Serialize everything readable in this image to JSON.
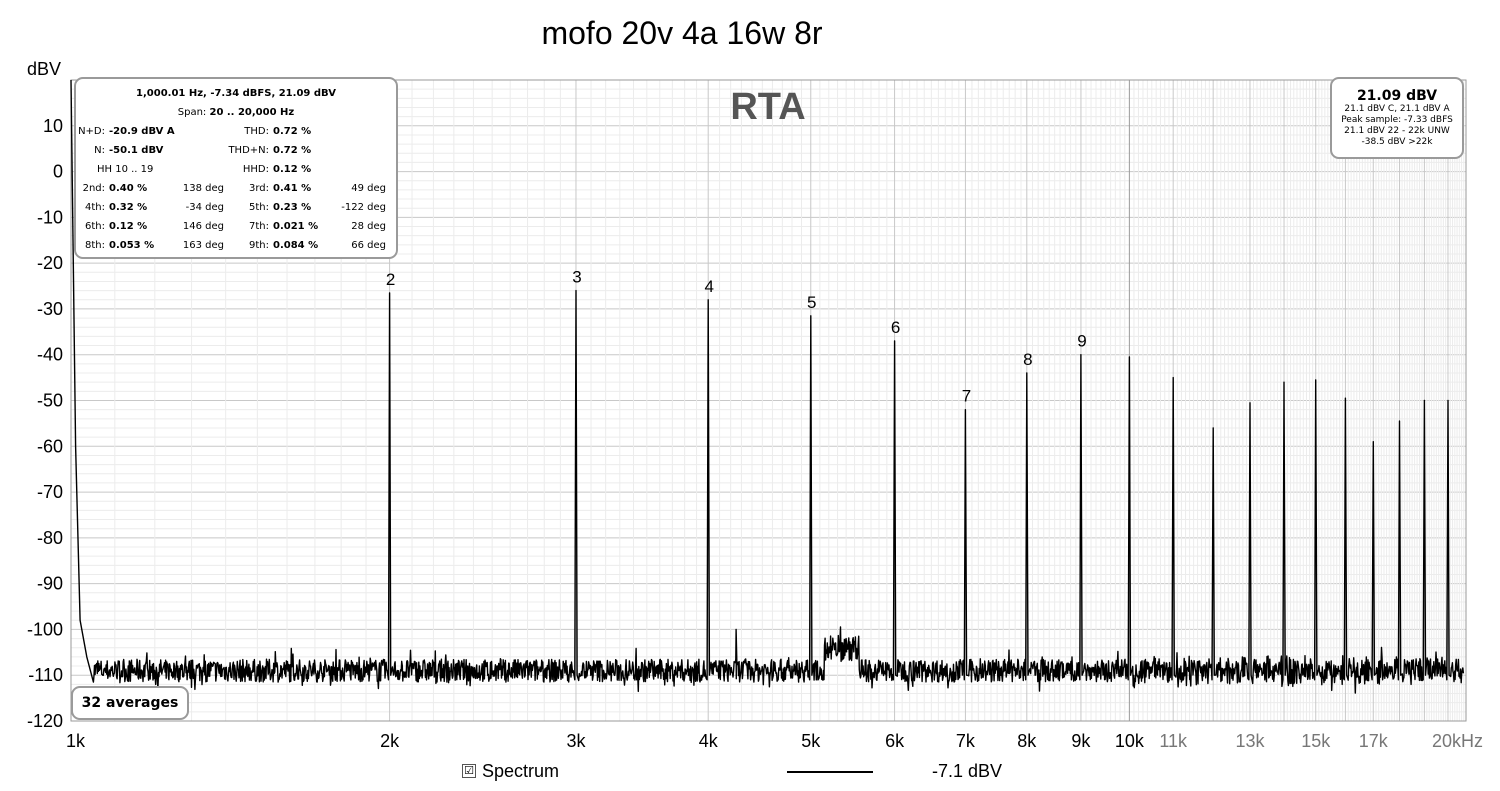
{
  "chart_data": {
    "type": "line",
    "title": "mofo 20v 4a 16w 8r",
    "watermark": "RTA",
    "ylabel": "dBV",
    "xlabel": "",
    "x_scale": "log",
    "xlim": [
      1000,
      20800
    ],
    "ylim": [
      -120,
      20
    ],
    "grid": true,
    "y_ticks": [
      "10",
      "0",
      "-10",
      "-20",
      "-30",
      "-40",
      "-50",
      "-60",
      "-70",
      "-80",
      "-90",
      "-100",
      "-110",
      "-120"
    ],
    "x_ticks": [
      {
        "value": 1000,
        "label": "1k"
      },
      {
        "value": 2000,
        "label": "2k"
      },
      {
        "value": 3000,
        "label": "3k"
      },
      {
        "value": 4000,
        "label": "4k"
      },
      {
        "value": 5000,
        "label": "5k"
      },
      {
        "value": 6000,
        "label": "6k"
      },
      {
        "value": 7000,
        "label": "7k"
      },
      {
        "value": 8000,
        "label": "8k"
      },
      {
        "value": 9000,
        "label": "9k"
      },
      {
        "value": 10000,
        "label": "10k"
      },
      {
        "value": 11000,
        "label": "11k"
      },
      {
        "value": 13000,
        "label": "13k"
      },
      {
        "value": 15000,
        "label": "15k"
      },
      {
        "value": 17000,
        "label": "17k"
      },
      {
        "value": 20000,
        "label": "20kHz"
      }
    ],
    "noise_floor_dbv": -109,
    "series": [
      {
        "name": "Spectrum",
        "fundamental": {
          "x": 1000,
          "y": 21.09
        },
        "peaks": [
          {
            "x": 2000,
            "y": -26.5,
            "label": "2"
          },
          {
            "x": 3000,
            "y": -26,
            "label": "3"
          },
          {
            "x": 4000,
            "y": -28,
            "label": "4"
          },
          {
            "x": 5000,
            "y": -31.5,
            "label": "5"
          },
          {
            "x": 6000,
            "y": -37,
            "label": "6"
          },
          {
            "x": 7000,
            "y": -52,
            "label": "7"
          },
          {
            "x": 8000,
            "y": -44,
            "label": "8"
          },
          {
            "x": 9000,
            "y": -40,
            "label": "9"
          },
          {
            "x": 10000,
            "y": -40.5,
            "label": ""
          },
          {
            "x": 11000,
            "y": -45,
            "label": ""
          },
          {
            "x": 12000,
            "y": -56,
            "label": ""
          },
          {
            "x": 13000,
            "y": -50.5,
            "label": ""
          },
          {
            "x": 14000,
            "y": -46,
            "label": ""
          },
          {
            "x": 15000,
            "y": -45.5,
            "label": ""
          },
          {
            "x": 16000,
            "y": -49.5,
            "label": ""
          },
          {
            "x": 17000,
            "y": -59,
            "label": ""
          },
          {
            "x": 18000,
            "y": -54.5,
            "label": ""
          },
          {
            "x": 19000,
            "y": -50,
            "label": ""
          },
          {
            "x": 20000,
            "y": -50,
            "label": ""
          }
        ],
        "spurs": [
          {
            "x": 4250,
            "y": -100
          },
          {
            "x": 5400,
            "y": -102
          }
        ]
      }
    ]
  },
  "readout": {
    "header": "1,000.01 Hz, -7.34 dBFS, 21.09 dBV",
    "span_label": "Span:",
    "span_value": "20 .. 20,000 Hz",
    "nd_label": "N+D:",
    "nd_value": "-20.9 dBV A",
    "thd_label": "THD:",
    "thd_value": "0.72 %",
    "n_label": "N:",
    "n_value": "-50.1 dBV",
    "thdn_label": "THD+N:",
    "thdn_value": "0.72 %",
    "hh_label": "HH 10 .. 19",
    "hhd_label": "HHD:",
    "hhd_value": "0.12 %",
    "harmonics": [
      {
        "label": "2nd:",
        "value": "0.40 %",
        "phase": "138 deg"
      },
      {
        "label": "3rd:",
        "value": "0.41 %",
        "phase": "49 deg"
      },
      {
        "label": "4th:",
        "value": "0.32 %",
        "phase": "-34 deg"
      },
      {
        "label": "5th:",
        "value": "0.23 %",
        "phase": "-122 deg"
      },
      {
        "label": "6th:",
        "value": "0.12 %",
        "phase": "146 deg"
      },
      {
        "label": "7th:",
        "value": "0.021 %",
        "phase": "28 deg"
      },
      {
        "label": "8th:",
        "value": "0.053 %",
        "phase": "163 deg"
      },
      {
        "label": "9th:",
        "value": "0.084 %",
        "phase": "66 deg"
      }
    ]
  },
  "level_box": {
    "main": "21.09 dBV",
    "line1": "21.1 dBV C, 21.1 dBV A",
    "line2": "Peak sample: -7.33 dBFS",
    "line3": "21.1 dBV 22 - 22k UNW",
    "line4": "-38.5 dBV >22k"
  },
  "averages": "32 averages",
  "legend": {
    "checkbox_mark": "☑",
    "series_label": "Spectrum",
    "level": "-7.1 dBV"
  }
}
